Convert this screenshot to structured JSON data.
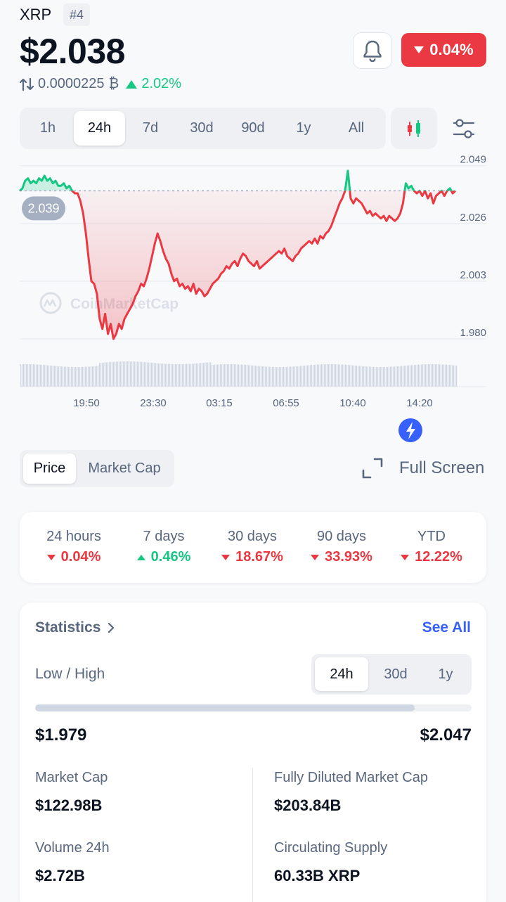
{
  "header": {
    "ticker": "XRP",
    "rank": "#4",
    "price": "$2.038",
    "change_badge": "0.04%",
    "btc_price": "0.0000225",
    "btc_symbol": "₿",
    "btc_change": "2.02%"
  },
  "icons": [
    "swap-arrows-icon",
    "bell-icon",
    "candlestick-icon",
    "sliders-icon",
    "expand-icon",
    "lightning-icon",
    "coinmarketcap-logo-icon"
  ],
  "colors": {
    "up": "#16c784",
    "down": "#ea3943",
    "accent": "#3861fb"
  },
  "timeframes": {
    "items": [
      "1h",
      "24h",
      "7d",
      "30d",
      "90d",
      "1y",
      "All"
    ],
    "selected": "24h"
  },
  "chart_data": {
    "type": "line",
    "y_ticks": [
      "2.049",
      "2.026",
      "2.003",
      "1.980"
    ],
    "ylim": [
      1.975,
      2.052
    ],
    "x_ticks": [
      "19:50",
      "23:30",
      "03:15",
      "06:55",
      "10:40",
      "14:20"
    ],
    "baseline_label": "2.039",
    "baseline": 2.039,
    "watermark": "CoinMarketCap",
    "series": [
      {
        "values": [
          2.039,
          2.04,
          2.043,
          2.044,
          2.042,
          2.043,
          2.042,
          2.044,
          2.043,
          2.045,
          2.043,
          2.044,
          2.042,
          2.043,
          2.041,
          2.041,
          2.042,
          2.04,
          2.041,
          2.039,
          2.038,
          2.038,
          2.035,
          2.03,
          2.022,
          2.012,
          2.003,
          2.002,
          1.998,
          1.988,
          1.984,
          1.99,
          1.982,
          1.986,
          1.98,
          1.982,
          1.986,
          1.984,
          1.988,
          1.99,
          1.992,
          1.994,
          1.997,
          1.999,
          2.002,
          2.001,
          2.004,
          2.008,
          2.013,
          2.018,
          2.022,
          2.019,
          2.015,
          2.012,
          2.01,
          2.006,
          2.003,
          2.004,
          2.001,
          2.002,
          2.0,
          2.001,
          1.999,
          2.002,
          1.998,
          2.0,
          1.999,
          1.997,
          1.998,
          2.0,
          2.002,
          2.003,
          2.004,
          2.006,
          2.007,
          2.009,
          2.008,
          2.01,
          2.011,
          2.009,
          2.012,
          2.014,
          2.013,
          2.011,
          2.01,
          2.009,
          2.011,
          2.008,
          2.009,
          2.01,
          2.011,
          2.012,
          2.013,
          2.014,
          2.015,
          2.014,
          2.016,
          2.013,
          2.012,
          2.011,
          2.013,
          2.014,
          2.016,
          2.017,
          2.018,
          2.019,
          2.018,
          2.02,
          2.018,
          2.021,
          2.02,
          2.022,
          2.023,
          2.025,
          2.028,
          2.031,
          2.034,
          2.036,
          2.039,
          2.047,
          2.036,
          2.034,
          2.036,
          2.035,
          2.034,
          2.032,
          2.03,
          2.031,
          2.029,
          2.03,
          2.029,
          2.028,
          2.029,
          2.027,
          2.029,
          2.028,
          2.027,
          2.028,
          2.03,
          2.034,
          2.042,
          2.04,
          2.041,
          2.039,
          2.038,
          2.039,
          2.037,
          2.039,
          2.036,
          2.038,
          2.034,
          2.037,
          2.038,
          2.039,
          2.037,
          2.039,
          2.04,
          2.038,
          2.039
        ]
      }
    ]
  },
  "price_toggle": {
    "price": "Price",
    "market_cap": "Market Cap"
  },
  "fullscreen_label": "Full Screen",
  "performance": [
    {
      "label": "24 hours",
      "value": "0.04%",
      "dir": "down"
    },
    {
      "label": "7 days",
      "value": "0.46%",
      "dir": "up"
    },
    {
      "label": "30 days",
      "value": "18.67%",
      "dir": "down"
    },
    {
      "label": "90 days",
      "value": "33.93%",
      "dir": "down"
    },
    {
      "label": "YTD",
      "value": "12.22%",
      "dir": "down"
    }
  ],
  "statistics": {
    "title": "Statistics",
    "see_all": "See All",
    "low_high_label": "Low / High",
    "range_tabs": [
      "24h",
      "30d",
      "1y"
    ],
    "range_fill": 0.87,
    "low": "$1.979",
    "high": "$2.047",
    "market_cap_label": "Market Cap",
    "market_cap": "$122.98B",
    "fdmc_label": "Fully Diluted Market Cap",
    "fdmc": "$203.84B",
    "volume_label": "Volume 24h",
    "volume": "$2.72B",
    "supply_label": "Circulating Supply",
    "supply": "60.33B XRP"
  }
}
